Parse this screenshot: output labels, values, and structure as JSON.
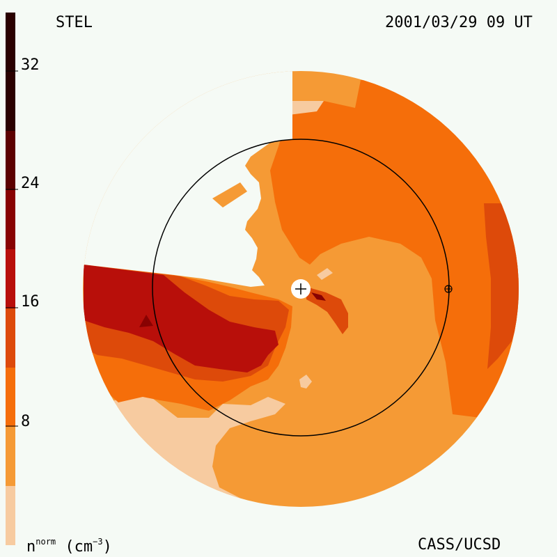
{
  "header": {
    "source": "STEL",
    "timestamp": "2001/03/29 09 UT"
  },
  "footer": {
    "credit": "CASS/UCSD"
  },
  "colorbar": {
    "ticks": [
      "32",
      "24",
      "16",
      "8"
    ],
    "units_base": "n",
    "units_sup": "norm",
    "units_tail": " (cm",
    "units_exp": "−3",
    "units_close": ")",
    "colors": [
      "#f7cba0",
      "#f59a35",
      "#f56e0a",
      "#dd4a0a",
      "#b80f0a",
      "#880202",
      "#5c0000",
      "#2a0000"
    ]
  },
  "markers": {
    "sun": "+",
    "earth": "earth-marker"
  }
}
